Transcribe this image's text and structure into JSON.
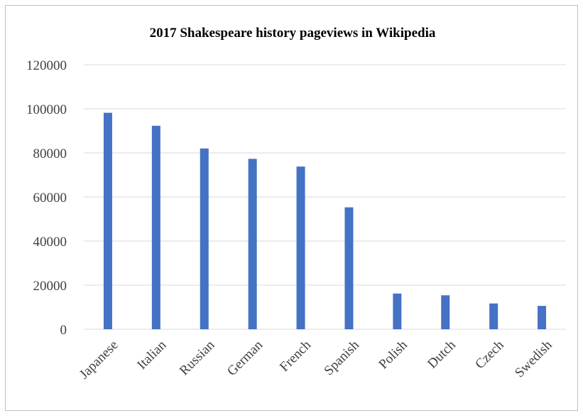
{
  "chart_data": {
    "type": "bar",
    "title": "2017 Shakespeare history pageviews in Wikipedia",
    "categories": [
      "Japanese",
      "Italian",
      "Russian",
      "German",
      "French",
      "Spanish",
      "Polish",
      "Dutch",
      "Czech",
      "Swedish"
    ],
    "values": [
      98200,
      92300,
      82000,
      77300,
      73800,
      55300,
      16200,
      15400,
      11700,
      10600
    ],
    "ylim": [
      0,
      120000
    ],
    "yticks": [
      "0",
      "20000",
      "40000",
      "60000",
      "80000",
      "100000",
      "120000"
    ],
    "grid": true,
    "legend": "none",
    "bar_color": "#4472c4",
    "xlabel": "",
    "ylabel": ""
  }
}
